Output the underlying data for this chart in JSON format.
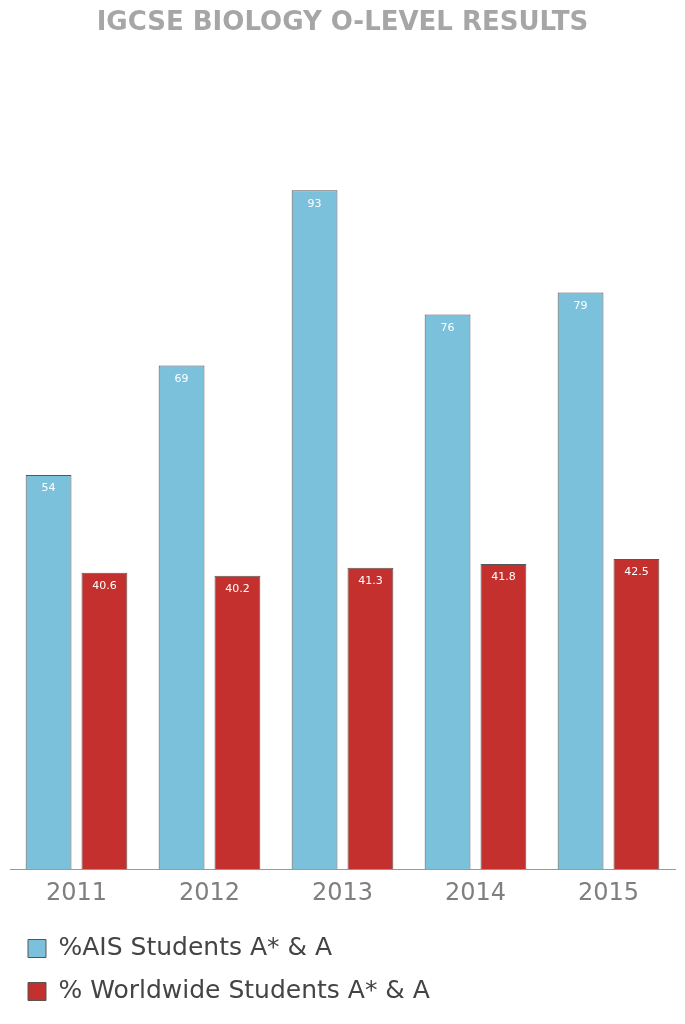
{
  "chart_data": {
    "type": "bar",
    "title": "IGCSE BIOLOGY O-LEVEL RESULTS",
    "categories": [
      "2011",
      "2012",
      "2013",
      "2014",
      "2015"
    ],
    "series": [
      {
        "name": "%AIS Students A* & A",
        "color": "#7cc1db",
        "values": [
          54,
          69,
          93,
          76,
          79
        ]
      },
      {
        "name": "% Worldwide Students A* & A",
        "color": "#c4302d",
        "values": [
          40.6,
          40.2,
          41.3,
          41.8,
          42.5
        ]
      }
    ],
    "data_labels": true,
    "grid": false,
    "legend": "bottom"
  }
}
